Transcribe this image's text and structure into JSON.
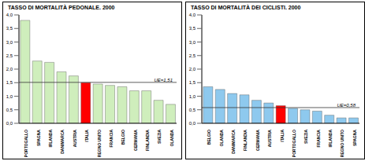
{
  "chart_data": [
    {
      "type": "bar",
      "title": "TASSO DI MORTALITÀ PEDONALE. 2000",
      "categories": [
        "PORTOGALLO",
        "SPAGNA",
        "IRLANDA",
        "DANIMARCA",
        "AUSTRIA",
        "ITALIA",
        "REGNO UNITO",
        "FRANCIA",
        "BELGIO",
        "GERMANIA",
        "FINLANDIA",
        "SVEZIA",
        "OLANDA"
      ],
      "values": [
        3.8,
        2.3,
        2.25,
        1.9,
        1.75,
        1.5,
        1.45,
        1.4,
        1.35,
        1.2,
        1.2,
        0.85,
        0.7
      ],
      "colors": [
        "#cfeebc",
        "#cfeebc",
        "#cfeebc",
        "#cfeebc",
        "#cfeebc",
        "#ff0000",
        "#cfeebc",
        "#cfeebc",
        "#cfeebc",
        "#cfeebc",
        "#cfeebc",
        "#cfeebc",
        "#cfeebc"
      ],
      "ylim": [
        0,
        4
      ],
      "yticks": [
        {
          "value": 0,
          "label": "0,0"
        },
        {
          "value": 0.5,
          "label": "0,5"
        },
        {
          "value": 1,
          "label": "1,0"
        },
        {
          "value": 1.5,
          "label": "1,5"
        },
        {
          "value": 2,
          "label": "2,0"
        },
        {
          "value": 2.5,
          "label": "2,5"
        },
        {
          "value": 3,
          "label": "3,0"
        },
        {
          "value": 3.5,
          "label": "3,5"
        },
        {
          "value": 4,
          "label": "4,0"
        }
      ],
      "reference_line": {
        "value": 1.51,
        "label": "UE=1,51"
      },
      "grid": false
    },
    {
      "type": "bar",
      "title": "TASSO DI MORTALITÀ DEI CICLISTI. 2000",
      "categories": [
        "BELGIO",
        "OLANDA",
        "DANIMARCA",
        "FINLANDIA",
        "GERMANIA",
        "AUSTRIA",
        "ITALIA",
        "PORTOGALLO",
        "SVEZIA",
        "FRANCIA",
        "IRLANDA",
        "REGNO UNITO",
        "SPAGNA"
      ],
      "values": [
        1.35,
        1.25,
        1.1,
        1.05,
        0.85,
        0.75,
        0.65,
        0.55,
        0.5,
        0.45,
        0.3,
        0.2,
        0.2
      ],
      "colors": [
        "#8ec9ee",
        "#8ec9ee",
        "#8ec9ee",
        "#8ec9ee",
        "#8ec9ee",
        "#8ec9ee",
        "#ff0000",
        "#8ec9ee",
        "#8ec9ee",
        "#8ec9ee",
        "#8ec9ee",
        "#8ec9ee",
        "#8ec9ee"
      ],
      "ylim": [
        0,
        4
      ],
      "yticks": [
        {
          "value": 0,
          "label": "0,0"
        },
        {
          "value": 0.5,
          "label": "0,5"
        },
        {
          "value": 1,
          "label": "1,0"
        },
        {
          "value": 1.5,
          "label": "1,5"
        },
        {
          "value": 2,
          "label": "2,0"
        },
        {
          "value": 2.5,
          "label": "2,5"
        },
        {
          "value": 3,
          "label": "3,0"
        },
        {
          "value": 3.5,
          "label": "3,5"
        },
        {
          "value": 4,
          "label": "4,0"
        }
      ],
      "reference_line": {
        "value": 0.58,
        "label": "UE=0,58"
      },
      "grid": false
    }
  ]
}
